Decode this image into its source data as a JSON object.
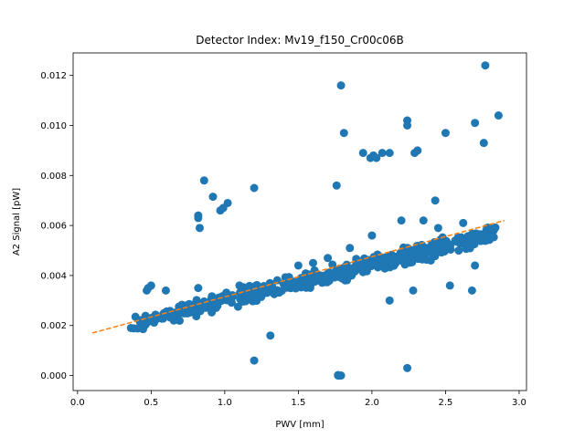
{
  "chart_data": {
    "type": "scatter",
    "title": "Detector Index: Mv19_f150_Cr00c06B",
    "xlabel": "PWV [mm]",
    "ylabel": "A2 Signal [pW]",
    "xlim": [
      -0.03,
      3.05
    ],
    "ylim": [
      -0.0006,
      0.0129
    ],
    "x_ticks": [
      0.0,
      0.5,
      1.0,
      1.5,
      2.0,
      2.5,
      3.0
    ],
    "x_tick_labels": [
      "0.0",
      "0.5",
      "1.0",
      "1.5",
      "2.0",
      "2.5",
      "3.0"
    ],
    "y_ticks": [
      0.0,
      0.002,
      0.004,
      0.006,
      0.008,
      0.01,
      0.012
    ],
    "y_tick_labels": [
      "0.000",
      "0.002",
      "0.004",
      "0.006",
      "0.008",
      "0.010",
      "0.012"
    ],
    "colors": {
      "points": "#1f77b4",
      "fit": "#ff7f0e"
    },
    "fit": {
      "type": "linear-dashed",
      "x": [
        0.1,
        2.9
      ],
      "y": [
        0.0017,
        0.0062
      ]
    },
    "trend_band": {
      "x_range": [
        0.35,
        2.85
      ],
      "slope": 0.00147,
      "intercept": 0.00152,
      "count": 520,
      "spread": 0.00022
    },
    "series": [
      {
        "name": "outliers",
        "points": [
          [
            0.47,
            0.0034
          ],
          [
            0.48,
            0.0035
          ],
          [
            0.5,
            0.0036
          ],
          [
            0.6,
            0.0034
          ],
          [
            0.82,
            0.0064
          ],
          [
            0.82,
            0.0063
          ],
          [
            0.82,
            0.0035
          ],
          [
            0.83,
            0.0059
          ],
          [
            0.86,
            0.0078
          ],
          [
            0.92,
            0.00715
          ],
          [
            0.97,
            0.0066
          ],
          [
            0.99,
            0.0067
          ],
          [
            1.02,
            0.0069
          ],
          [
            1.2,
            0.0075
          ],
          [
            1.2,
            0.0006
          ],
          [
            1.1,
            0.0036
          ],
          [
            1.31,
            0.0016
          ],
          [
            1.76,
            0.0076
          ],
          [
            1.79,
            0.0116
          ],
          [
            1.81,
            0.0097
          ],
          [
            1.77,
            0.0
          ],
          [
            1.78,
            0.0
          ],
          [
            1.79,
            0.0
          ],
          [
            1.77,
            2e-05
          ],
          [
            1.94,
            0.0089
          ],
          [
            1.99,
            0.0087
          ],
          [
            2.01,
            0.0088
          ],
          [
            2.03,
            0.0087
          ],
          [
            2.07,
            0.0089
          ],
          [
            2.12,
            0.0089
          ],
          [
            2.12,
            0.003
          ],
          [
            2.24,
            0.0102
          ],
          [
            2.24,
            0.01
          ],
          [
            2.24,
            0.0003
          ],
          [
            2.29,
            0.0089
          ],
          [
            2.31,
            0.009
          ],
          [
            2.28,
            0.0034
          ],
          [
            2.43,
            0.007
          ],
          [
            2.5,
            0.0097
          ],
          [
            2.53,
            0.0036
          ],
          [
            2.68,
            0.0034
          ],
          [
            2.7,
            0.0101
          ],
          [
            2.76,
            0.0093
          ],
          [
            2.77,
            0.0124
          ],
          [
            2.86,
            0.0104
          ],
          [
            2.35,
            0.0062
          ],
          [
            2.62,
            0.0061
          ],
          [
            2.45,
            0.0059
          ],
          [
            1.7,
            0.0047
          ],
          [
            1.6,
            0.0045
          ],
          [
            1.85,
            0.0051
          ],
          [
            2.0,
            0.0056
          ],
          [
            2.2,
            0.0062
          ],
          [
            2.48,
            0.0053
          ],
          [
            2.7,
            0.0044
          ],
          [
            1.95,
            0.0042
          ],
          [
            1.5,
            0.0044
          ],
          [
            2.4,
            0.0046
          ],
          [
            2.6,
            0.0055
          ],
          [
            0.65,
            0.0025
          ]
        ]
      }
    ]
  }
}
